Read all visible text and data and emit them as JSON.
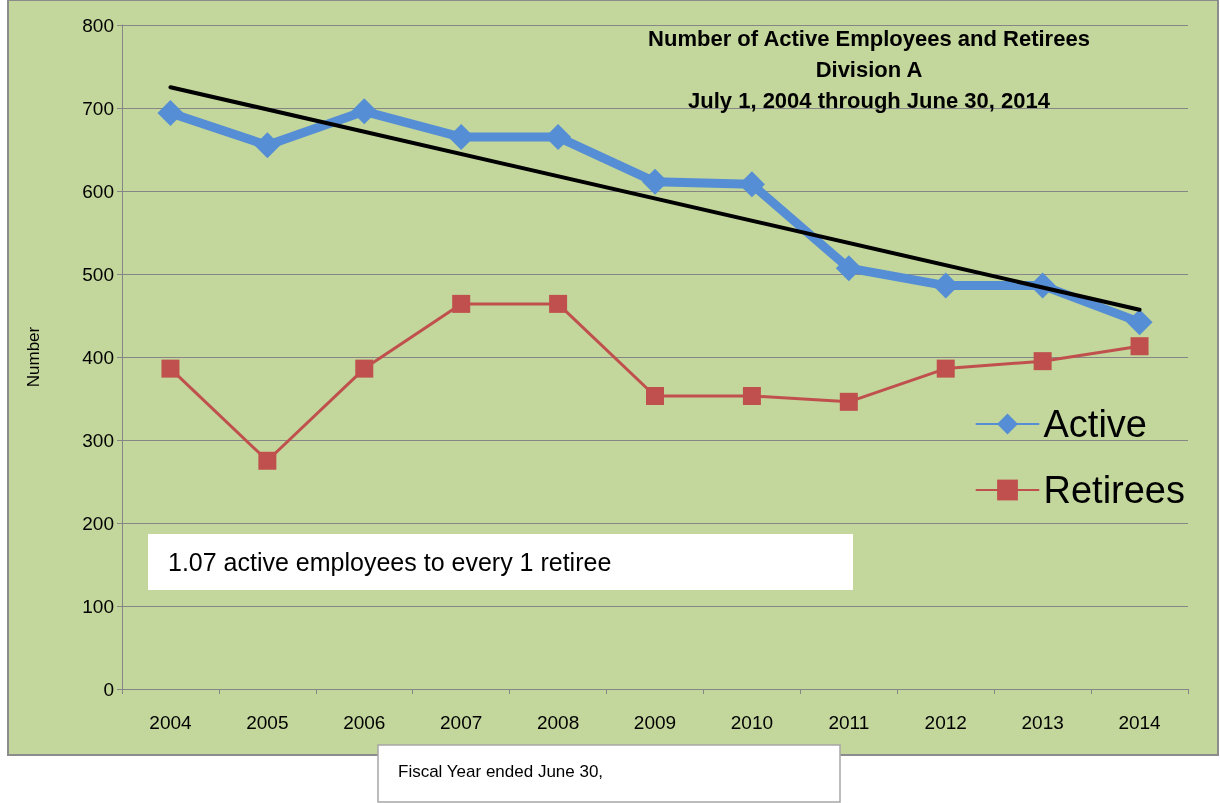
{
  "chart_data": {
    "type": "line",
    "title": "Number of Active Employees and Retirees\nDivision A\nJuly 1, 2004 through June 30, 2014",
    "xlabel": "Fiscal Year ended June 30,",
    "ylabel": "Number",
    "categories": [
      "2004",
      "2005",
      "2006",
      "2007",
      "2008",
      "2009",
      "2010",
      "2011",
      "2012",
      "2013",
      "2014"
    ],
    "series": [
      {
        "name": "Active",
        "color": "#558ed5",
        "marker": "diamond",
        "values": [
          694,
          655,
          696,
          665,
          665,
          611,
          608,
          507,
          486,
          486,
          442
        ]
      },
      {
        "name": "Retirees",
        "color": "#c0504d",
        "marker": "square",
        "values": [
          386,
          275,
          386,
          464,
          464,
          353,
          353,
          346,
          386,
          395,
          413
        ]
      },
      {
        "type": "line",
        "color": "#000000",
        "marker": "none",
        "values": [
          725,
          null,
          null,
          null,
          null,
          null,
          null,
          null,
          null,
          null,
          457
        ]
      }
    ],
    "ylim": [
      0,
      800
    ],
    "yticks": [
      0,
      100,
      200,
      300,
      400,
      500,
      600,
      700,
      800
    ],
    "grid": "y",
    "legend": "right",
    "annotations": [
      "1.07 active employees to every 1 retiree"
    ]
  }
}
